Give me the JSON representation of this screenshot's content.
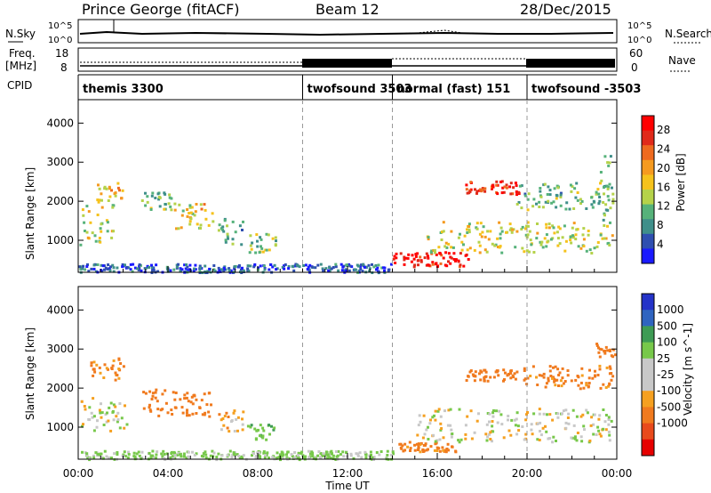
{
  "header": {
    "station": "Prince George (fitACF)",
    "beam": "Beam 12",
    "date": "28/Dec/2015"
  },
  "strip_labels": {
    "nsky": "N.Sky",
    "nsky_scale_hi": "10^5",
    "nsky_scale_lo": "10^0",
    "nsearch": "N.Search",
    "nsearch_scale_hi": "10^5",
    "nsearch_scale_lo": "10^0",
    "freq": "Freq.",
    "freq_unit": "[MHz]",
    "freq_ticks": [
      "18",
      "8"
    ],
    "nave": "Nave",
    "nave_ticks": [
      "60",
      "0"
    ],
    "cpid": "CPID"
  },
  "cpid_segments": [
    {
      "label": "themis 3300",
      "start_h": 0,
      "end_h": 10
    },
    {
      "label": "twofsound 3503",
      "start_h": 10,
      "end_h": 14
    },
    {
      "label": "normal (fast) 151",
      "start_h": 14,
      "end_h": 20
    },
    {
      "label": "twofsound -3503",
      "start_h": 20,
      "end_h": 24
    }
  ],
  "chart_data": [
    {
      "type": "heatmap",
      "panel": "power",
      "xlabel": "Time UT",
      "ylabel": "Slant Range [km]",
      "x_ticks": [
        "00:00",
        "04:00",
        "08:00",
        "12:00",
        "16:00",
        "20:00",
        "00:00"
      ],
      "xlim_hours": [
        0,
        24
      ],
      "ylim": [
        180,
        4600
      ],
      "y_ticks": [
        1000,
        2000,
        3000,
        4000
      ],
      "colorbar": {
        "label": "Power [dB]",
        "ticks": [
          4,
          8,
          12,
          16,
          20,
          24,
          28
        ],
        "range": [
          0,
          31
        ],
        "colors": [
          "#1a1aff",
          "#2f4fb0",
          "#3f8f8a",
          "#56b27a",
          "#b5d24a",
          "#f5c21c",
          "#f59a1f",
          "#ee6a1f",
          "#e02a1a",
          "#ff0000"
        ]
      },
      "regions": [
        {
          "t": [
            0.0,
            1.6
          ],
          "r": [
            900,
            2000
          ],
          "v": 14
        },
        {
          "t": [
            0.8,
            2.0
          ],
          "r": [
            2000,
            2500
          ],
          "v": 18
        },
        {
          "t": [
            2.8,
            4.2
          ],
          "r": [
            1800,
            2300
          ],
          "v": 11
        },
        {
          "t": [
            4.2,
            6.0
          ],
          "r": [
            1300,
            2000
          ],
          "v": 17
        },
        {
          "t": [
            6.2,
            7.3
          ],
          "r": [
            900,
            1600
          ],
          "v": 10
        },
        {
          "t": [
            7.5,
            8.8
          ],
          "r": [
            700,
            1200
          ],
          "v": 13
        },
        {
          "t": [
            0.0,
            14.0
          ],
          "r": [
            200,
            420
          ],
          "v": 5
        },
        {
          "t": [
            14.0,
            17.4
          ],
          "r": [
            350,
            720
          ],
          "v": 29
        },
        {
          "t": [
            15.5,
            23.8
          ],
          "r": [
            700,
            1500
          ],
          "v": 15
        },
        {
          "t": [
            17.2,
            19.6
          ],
          "r": [
            2200,
            2550
          ],
          "v": 26
        },
        {
          "t": [
            19.5,
            23.8
          ],
          "r": [
            1800,
            2500
          ],
          "v": 11
        },
        {
          "t": [
            23.0,
            24.0
          ],
          "r": [
            1500,
            3200
          ],
          "v": 13
        }
      ]
    },
    {
      "type": "heatmap",
      "panel": "velocity",
      "xlabel": "Time UT",
      "ylabel": "Slant Range [km]",
      "x_ticks": [
        "00:00",
        "04:00",
        "08:00",
        "12:00",
        "16:00",
        "20:00",
        "00:00"
      ],
      "xlim_hours": [
        0,
        24
      ],
      "ylim": [
        180,
        4600
      ],
      "y_ticks": [
        1000,
        2000,
        3000,
        4000
      ],
      "colorbar": {
        "label": "Velocity [m s^-1]",
        "ticks": [
          "1000",
          "500",
          "100",
          "25",
          "-25",
          "-100",
          "-500",
          "-1000"
        ],
        "colors": [
          "#2433c8",
          "#2f64c0",
          "#3e9b54",
          "#77c84a",
          "#c8c8c8",
          "#c8c8c8",
          "#f5a020",
          "#f07a1e",
          "#e84a1c",
          "#e60000"
        ]
      },
      "regions": [
        {
          "t": [
            0.0,
            2.2
          ],
          "r": [
            900,
            1800
          ],
          "v": 0
        },
        {
          "t": [
            0.5,
            2.0
          ],
          "r": [
            2200,
            2800
          ],
          "v": -120
        },
        {
          "t": [
            2.8,
            6.0
          ],
          "r": [
            1300,
            2000
          ],
          "v": -200
        },
        {
          "t": [
            6.2,
            7.3
          ],
          "r": [
            900,
            1500
          ],
          "v": -60
        },
        {
          "t": [
            7.5,
            8.7
          ],
          "r": [
            700,
            1100
          ],
          "v": 80
        },
        {
          "t": [
            0.0,
            14.0
          ],
          "r": [
            200,
            420
          ],
          "v": 40
        },
        {
          "t": [
            14.0,
            17.0
          ],
          "r": [
            400,
            650
          ],
          "v": -150
        },
        {
          "t": [
            15.0,
            23.8
          ],
          "r": [
            650,
            1500
          ],
          "v": 5
        },
        {
          "t": [
            17.2,
            19.6
          ],
          "r": [
            2200,
            2500
          ],
          "v": -260
        },
        {
          "t": [
            19.8,
            23.8
          ],
          "r": [
            2000,
            2600
          ],
          "v": -140
        },
        {
          "t": [
            23.0,
            24.0
          ],
          "r": [
            2800,
            3200
          ],
          "v": -300
        }
      ]
    }
  ]
}
